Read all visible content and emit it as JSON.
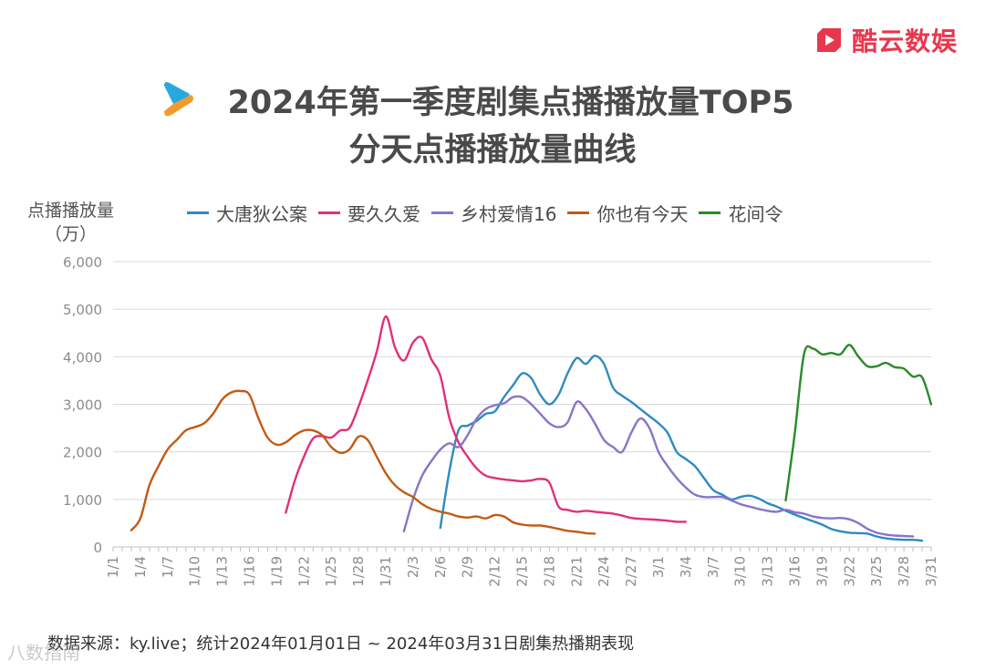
{
  "brand": {
    "name": "酷云数娱",
    "color": "#e8374d"
  },
  "header": {
    "title_line1": "2024年第一季度剧集点播播放量TOP5",
    "title_line2": "分天点播播放量曲线"
  },
  "chart_data": {
    "type": "line",
    "title": "2024年第一季度剧集点播播放量TOP5 分天点播播放量曲线",
    "ylabel": "点播播放量",
    "ylabel_unit": "（万）",
    "xlabel": "",
    "ylim": [
      0,
      6000
    ],
    "yticks": [
      0,
      1000,
      2000,
      3000,
      4000,
      5000,
      6000
    ],
    "ytick_labels": [
      "0",
      "1,000",
      "2,000",
      "3,000",
      "4,000",
      "5,000",
      "6,000"
    ],
    "x_tick_labels": [
      "1/1",
      "1/4",
      "1/7",
      "1/10",
      "1/13",
      "1/16",
      "1/19",
      "1/22",
      "1/25",
      "1/28",
      "1/31",
      "2/3",
      "2/6",
      "2/9",
      "2/12",
      "2/15",
      "2/18",
      "2/21",
      "2/24",
      "2/27",
      "3/1",
      "3/4",
      "3/7",
      "3/10",
      "3/13",
      "3/16",
      "3/19",
      "3/22",
      "3/25",
      "3/28",
      "3/31"
    ],
    "grid": true,
    "legend_position": "top",
    "series": [
      {
        "name": "大唐狄公案",
        "color": "#2e8bc0",
        "points": [
          [
            37,
            400
          ],
          [
            38,
            1600
          ],
          [
            39,
            2450
          ],
          [
            40,
            2550
          ],
          [
            41,
            2650
          ],
          [
            42,
            2800
          ],
          [
            43,
            2850
          ],
          [
            44,
            3150
          ],
          [
            45,
            3400
          ],
          [
            46,
            3650
          ],
          [
            47,
            3550
          ],
          [
            48,
            3200
          ],
          [
            49,
            3000
          ],
          [
            50,
            3200
          ],
          [
            51,
            3650
          ],
          [
            52,
            3970
          ],
          [
            53,
            3850
          ],
          [
            54,
            4020
          ],
          [
            55,
            3850
          ],
          [
            56,
            3350
          ],
          [
            57,
            3180
          ],
          [
            58,
            3050
          ],
          [
            59,
            2900
          ],
          [
            60,
            2750
          ],
          [
            61,
            2600
          ],
          [
            62,
            2400
          ],
          [
            63,
            2000
          ],
          [
            64,
            1850
          ],
          [
            65,
            1700
          ],
          [
            66,
            1450
          ],
          [
            67,
            1200
          ],
          [
            68,
            1100
          ],
          [
            69,
            1000
          ],
          [
            70,
            1050
          ],
          [
            71,
            1080
          ],
          [
            72,
            1020
          ],
          [
            73,
            920
          ],
          [
            74,
            850
          ],
          [
            75,
            760
          ],
          [
            76,
            680
          ],
          [
            77,
            610
          ],
          [
            78,
            540
          ],
          [
            79,
            470
          ],
          [
            80,
            380
          ],
          [
            81,
            330
          ],
          [
            82,
            300
          ],
          [
            83,
            290
          ],
          [
            84,
            280
          ],
          [
            85,
            220
          ],
          [
            86,
            180
          ],
          [
            87,
            160
          ],
          [
            88,
            150
          ],
          [
            89,
            150
          ],
          [
            90,
            130
          ]
        ]
      },
      {
        "name": "要久久爱",
        "color": "#e0307a",
        "points": [
          [
            20,
            720
          ],
          [
            21,
            1400
          ],
          [
            22,
            1900
          ],
          [
            23,
            2280
          ],
          [
            24,
            2330
          ],
          [
            25,
            2300
          ],
          [
            26,
            2450
          ],
          [
            27,
            2500
          ],
          [
            28,
            2950
          ],
          [
            29,
            3500
          ],
          [
            30,
            4100
          ],
          [
            31,
            4850
          ],
          [
            32,
            4200
          ],
          [
            33,
            3920
          ],
          [
            34,
            4300
          ],
          [
            35,
            4400
          ],
          [
            36,
            3950
          ],
          [
            37,
            3600
          ],
          [
            38,
            2700
          ],
          [
            39,
            2200
          ],
          [
            40,
            1900
          ],
          [
            41,
            1650
          ],
          [
            42,
            1500
          ],
          [
            43,
            1450
          ],
          [
            44,
            1420
          ],
          [
            45,
            1400
          ],
          [
            46,
            1380
          ],
          [
            47,
            1400
          ],
          [
            48,
            1430
          ],
          [
            49,
            1350
          ],
          [
            50,
            850
          ],
          [
            51,
            780
          ],
          [
            52,
            740
          ],
          [
            53,
            760
          ],
          [
            54,
            740
          ],
          [
            55,
            720
          ],
          [
            56,
            700
          ],
          [
            57,
            660
          ],
          [
            58,
            610
          ],
          [
            59,
            590
          ],
          [
            60,
            580
          ],
          [
            61,
            570
          ],
          [
            62,
            550
          ],
          [
            63,
            530
          ],
          [
            64,
            530
          ]
        ]
      },
      {
        "name": "乡村爱情16",
        "color": "#8a74c8",
        "points": [
          [
            33,
            330
          ],
          [
            34,
            1000
          ],
          [
            35,
            1500
          ],
          [
            36,
            1800
          ],
          [
            37,
            2050
          ],
          [
            38,
            2180
          ],
          [
            39,
            2100
          ],
          [
            40,
            2350
          ],
          [
            41,
            2700
          ],
          [
            42,
            2900
          ],
          [
            43,
            2980
          ],
          [
            44,
            3020
          ],
          [
            45,
            3150
          ],
          [
            46,
            3150
          ],
          [
            47,
            3000
          ],
          [
            48,
            2800
          ],
          [
            49,
            2600
          ],
          [
            50,
            2520
          ],
          [
            51,
            2620
          ],
          [
            52,
            3050
          ],
          [
            53,
            2900
          ],
          [
            54,
            2600
          ],
          [
            55,
            2250
          ],
          [
            56,
            2100
          ],
          [
            57,
            2000
          ],
          [
            58,
            2400
          ],
          [
            59,
            2700
          ],
          [
            60,
            2500
          ],
          [
            61,
            2000
          ],
          [
            62,
            1700
          ],
          [
            63,
            1450
          ],
          [
            64,
            1250
          ],
          [
            65,
            1100
          ],
          [
            66,
            1050
          ],
          [
            67,
            1050
          ],
          [
            68,
            1050
          ],
          [
            69,
            980
          ],
          [
            70,
            900
          ],
          [
            71,
            850
          ],
          [
            72,
            800
          ],
          [
            73,
            760
          ],
          [
            74,
            740
          ],
          [
            75,
            780
          ],
          [
            76,
            730
          ],
          [
            77,
            700
          ],
          [
            78,
            640
          ],
          [
            79,
            610
          ],
          [
            80,
            600
          ],
          [
            81,
            610
          ],
          [
            82,
            580
          ],
          [
            83,
            500
          ],
          [
            84,
            380
          ],
          [
            85,
            300
          ],
          [
            86,
            260
          ],
          [
            87,
            240
          ],
          [
            88,
            230
          ],
          [
            89,
            220
          ]
        ]
      },
      {
        "name": "你也有今天",
        "color": "#c25a14",
        "points": [
          [
            3,
            350
          ],
          [
            4,
            600
          ],
          [
            5,
            1300
          ],
          [
            6,
            1700
          ],
          [
            7,
            2050
          ],
          [
            8,
            2250
          ],
          [
            9,
            2450
          ],
          [
            10,
            2520
          ],
          [
            11,
            2600
          ],
          [
            12,
            2800
          ],
          [
            13,
            3100
          ],
          [
            14,
            3250
          ],
          [
            15,
            3280
          ],
          [
            16,
            3200
          ],
          [
            17,
            2700
          ],
          [
            18,
            2300
          ],
          [
            19,
            2150
          ],
          [
            20,
            2200
          ],
          [
            21,
            2350
          ],
          [
            22,
            2450
          ],
          [
            23,
            2450
          ],
          [
            24,
            2350
          ],
          [
            25,
            2100
          ],
          [
            26,
            1980
          ],
          [
            27,
            2050
          ],
          [
            28,
            2320
          ],
          [
            29,
            2250
          ],
          [
            30,
            1900
          ],
          [
            31,
            1550
          ],
          [
            32,
            1300
          ],
          [
            33,
            1150
          ],
          [
            34,
            1050
          ],
          [
            35,
            900
          ],
          [
            36,
            800
          ],
          [
            37,
            740
          ],
          [
            38,
            700
          ],
          [
            39,
            640
          ],
          [
            40,
            620
          ],
          [
            41,
            640
          ],
          [
            42,
            600
          ],
          [
            43,
            670
          ],
          [
            44,
            640
          ],
          [
            45,
            520
          ],
          [
            46,
            470
          ],
          [
            47,
            450
          ],
          [
            48,
            450
          ],
          [
            49,
            420
          ],
          [
            50,
            380
          ],
          [
            51,
            340
          ],
          [
            52,
            320
          ],
          [
            53,
            290
          ],
          [
            54,
            280
          ]
        ]
      },
      {
        "name": "花间令",
        "color": "#2a8a2a",
        "points": [
          [
            75,
            980
          ],
          [
            76,
            2400
          ],
          [
            77,
            4050
          ],
          [
            78,
            4170
          ],
          [
            79,
            4050
          ],
          [
            80,
            4080
          ],
          [
            81,
            4050
          ],
          [
            82,
            4250
          ],
          [
            83,
            4000
          ],
          [
            84,
            3800
          ],
          [
            85,
            3800
          ],
          [
            86,
            3870
          ],
          [
            87,
            3780
          ],
          [
            88,
            3750
          ],
          [
            89,
            3580
          ],
          [
            90,
            3570
          ],
          [
            91,
            3000
          ]
        ]
      }
    ]
  },
  "footer": {
    "source": "数据来源：ky.live；统计2024年01月01日 ~ 2024年03月31日剧集热播期表现",
    "watermark": "八数指南"
  }
}
